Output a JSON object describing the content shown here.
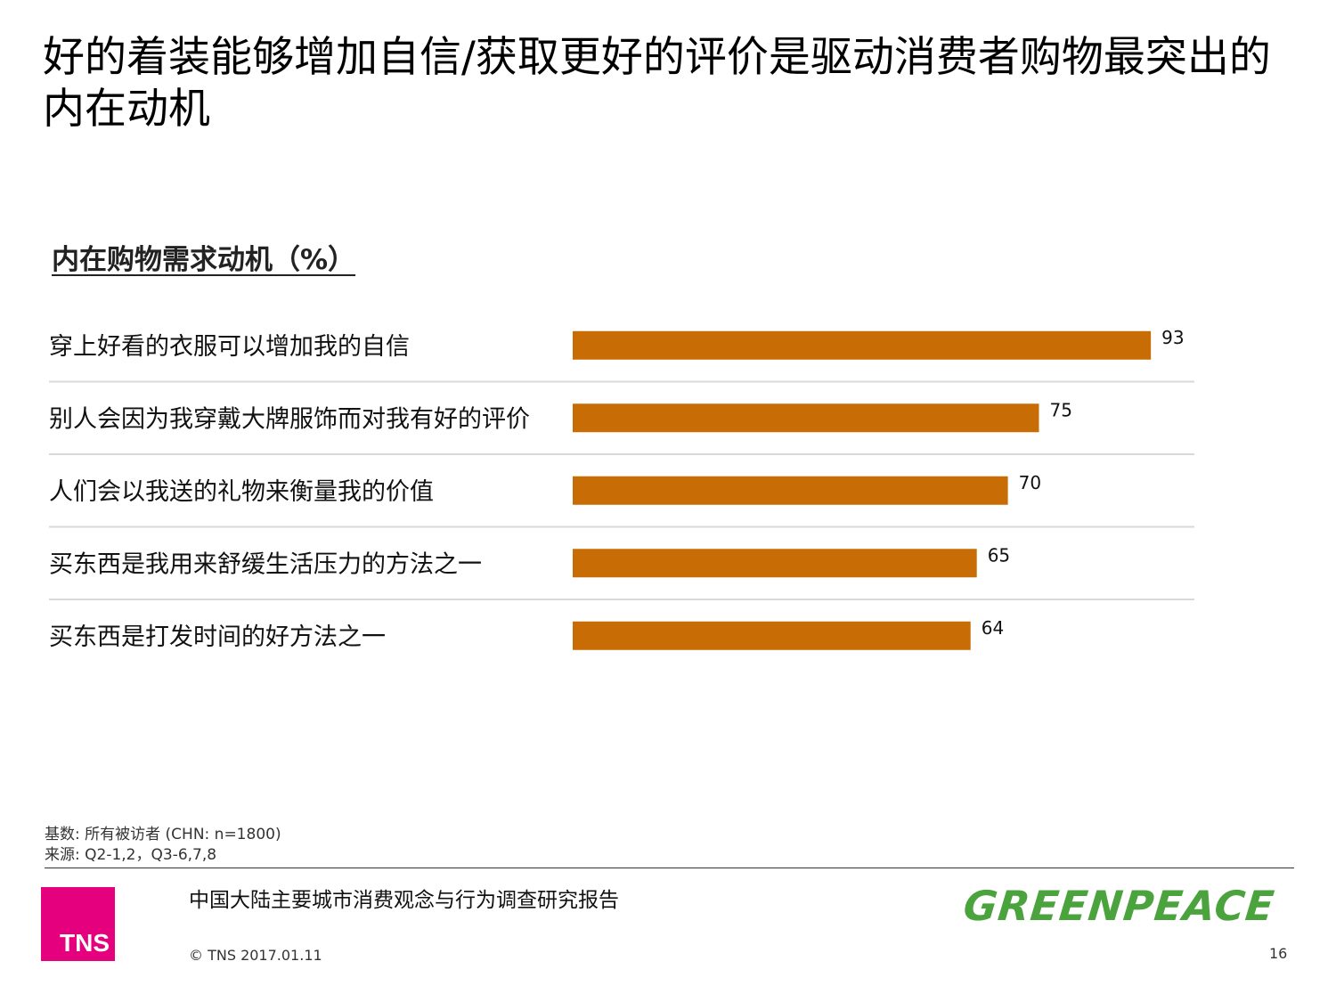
{
  "page": {
    "title": "好的着装能够增加自信/获取更好的评价是驱动消费者购物最突出的内在动机",
    "chart_title": "内在购物需求动机（%）"
  },
  "chart_data": {
    "type": "bar",
    "orientation": "horizontal",
    "title": "内在购物需求动机（%）",
    "categories": [
      "穿上好看的衣服可以增加我的自信",
      "别人会因为我穿戴大牌服饰而对我有好的评价",
      "人们会以我送的礼物来衡量我的价值",
      "买东西是我用来舒缓生活压力的方法之一",
      "买东西是打发时间的好方法之一"
    ],
    "values": [
      93,
      75,
      70,
      65,
      64
    ],
    "xlim": [
      0,
      100
    ],
    "bar_color": "#c86d05",
    "separator_color": "#d9d9d9",
    "grid": false
  },
  "footer": {
    "base_note": "基数: 所有被访者 (CHN: n=1800)",
    "source_note": "来源: Q2-1,2，Q3-6,7,8",
    "report_name": "中国大陆主要城市消费观念与行为调查研究报告",
    "copyright": "© TNS 2017.01.11",
    "page_number": "16",
    "tns_logo_text": "TNS",
    "greenpeace_logo_text": "GREENPEACE",
    "tns_color": "#e5007d",
    "greenpeace_color": "#4aa33c"
  }
}
